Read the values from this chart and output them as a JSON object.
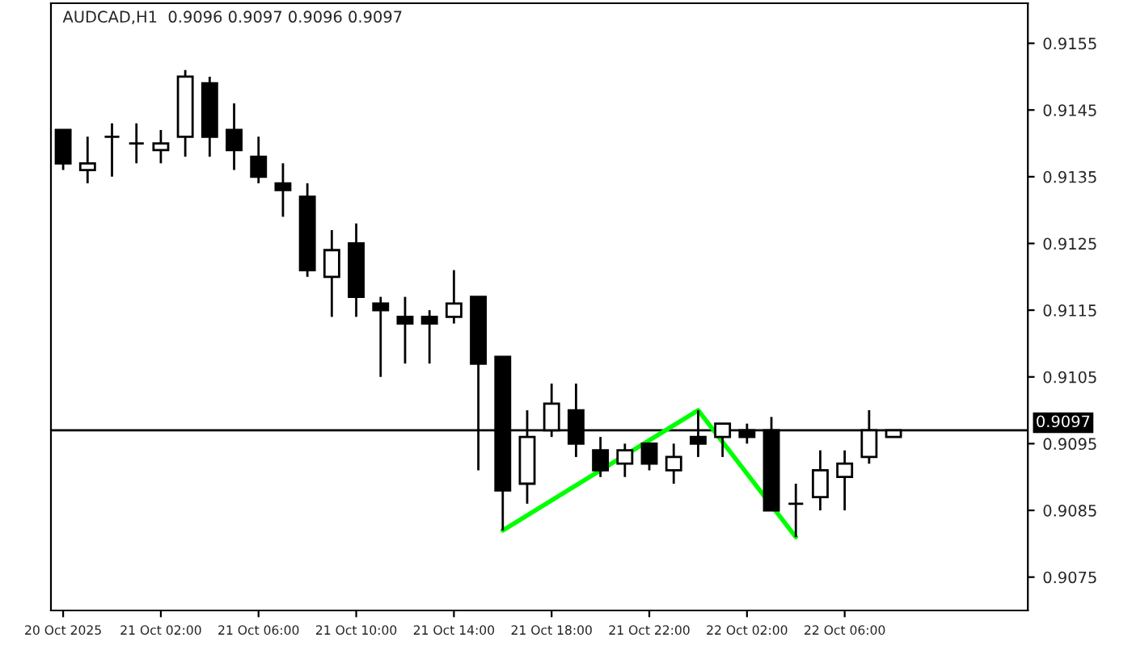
{
  "chart_data": {
    "type": "candlestick",
    "title": "AUDCAD,H1  0.9096 0.9097 0.9096 0.9097",
    "categories": [
      "20 Oct 2025",
      null,
      null,
      null,
      "21 Oct 02:00",
      null,
      null,
      null,
      "21 Oct 06:00",
      null,
      null,
      null,
      "21 Oct 10:00",
      null,
      null,
      null,
      "21 Oct 14:00",
      null,
      null,
      null,
      "21 Oct 18:00",
      null,
      null,
      null,
      "21 Oct 22:00",
      null,
      null,
      null,
      "22 Oct 02:00",
      null,
      null,
      null,
      "22 Oct 06:00",
      null,
      null,
      null,
      null,
      null,
      null,
      null
    ],
    "ohlc": [
      [
        0.9142,
        0.9142,
        0.9136,
        0.9137
      ],
      [
        0.9136,
        0.9141,
        0.9134,
        0.9137
      ],
      [
        0.9141,
        0.9143,
        0.9135,
        0.9141
      ],
      [
        0.914,
        0.9143,
        0.9137,
        0.914
      ],
      [
        0.9139,
        0.9142,
        0.9137,
        0.914
      ],
      [
        0.9141,
        0.9151,
        0.9138,
        0.915
      ],
      [
        0.9149,
        0.915,
        0.9138,
        0.9141
      ],
      [
        0.9142,
        0.9146,
        0.9136,
        0.9139
      ],
      [
        0.9138,
        0.9141,
        0.9134,
        0.9135
      ],
      [
        0.9134,
        0.9137,
        0.9129,
        0.9133
      ],
      [
        0.9132,
        0.9134,
        0.912,
        0.9121
      ],
      [
        0.912,
        0.9127,
        0.9114,
        0.9124
      ],
      [
        0.9125,
        0.9128,
        0.9114,
        0.9117
      ],
      [
        0.9116,
        0.9117,
        0.9105,
        0.9115
      ],
      [
        0.9114,
        0.9117,
        0.9107,
        0.9113
      ],
      [
        0.9114,
        0.9115,
        0.9107,
        0.9113
      ],
      [
        0.9114,
        0.9121,
        0.9113,
        0.9116
      ],
      [
        0.9117,
        0.9117,
        0.9091,
        0.9107
      ],
      [
        0.9108,
        0.9108,
        0.9082,
        0.9088
      ],
      [
        0.9089,
        0.91,
        0.9086,
        0.9096
      ],
      [
        0.9097,
        0.9104,
        0.9096,
        0.9101
      ],
      [
        0.91,
        0.9104,
        0.9093,
        0.9095
      ],
      [
        0.9094,
        0.9096,
        0.909,
        0.9091
      ],
      [
        0.9092,
        0.9095,
        0.909,
        0.9094
      ],
      [
        0.9095,
        0.9095,
        0.9091,
        0.9092
      ],
      [
        0.9091,
        0.9095,
        0.9089,
        0.9093
      ],
      [
        0.9096,
        0.91,
        0.9093,
        0.9095
      ],
      [
        0.9096,
        0.9098,
        0.9093,
        0.9098
      ],
      [
        0.9097,
        0.9098,
        0.9095,
        0.9096
      ],
      [
        0.9097,
        0.9099,
        0.9085,
        0.9085
      ],
      [
        0.9086,
        0.9089,
        0.9081,
        0.9086
      ],
      [
        0.9087,
        0.9094,
        0.9085,
        0.9091
      ],
      [
        0.909,
        0.9094,
        0.9085,
        0.9092
      ],
      [
        0.9093,
        0.91,
        0.9092,
        0.9097
      ],
      [
        0.9096,
        0.9097,
        0.9096,
        0.9097
      ],
      null,
      null,
      null,
      null,
      null
    ],
    "series": [
      {
        "type": "line",
        "color": "#00ff00",
        "values": [
          null,
          null,
          null,
          null,
          null,
          null,
          null,
          null,
          null,
          null,
          null,
          null,
          null,
          null,
          null,
          null,
          null,
          null,
          0.9082,
          null,
          null,
          null,
          null,
          null,
          null,
          null,
          0.91,
          null,
          null,
          null,
          0.9081,
          null,
          null,
          null,
          null,
          null,
          null,
          null,
          null,
          null
        ]
      }
    ],
    "ylim": [
      0.907,
      0.9161
    ],
    "yticks": [
      0.9075,
      0.9085,
      0.9095,
      0.9105,
      0.9115,
      0.9125,
      0.9135,
      0.9145,
      0.9155
    ],
    "ref_lines": [
      {
        "axis": "y",
        "value": 0.9097,
        "label": "0.9097",
        "color": "#000000"
      }
    ]
  }
}
